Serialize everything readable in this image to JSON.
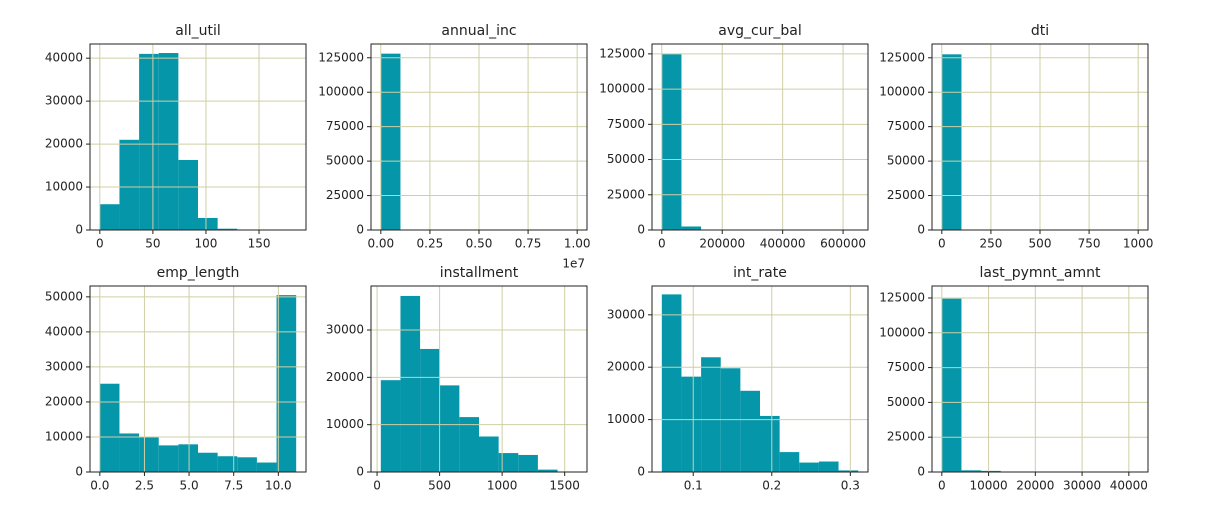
{
  "chart_data": [
    {
      "type": "histogram",
      "title": "all_util",
      "color": "#0596aa",
      "grid": true,
      "bins": [
        0,
        18.5,
        37,
        55.5,
        74,
        92.5,
        111,
        129.5,
        148,
        166.5,
        185
      ],
      "values": [
        6000,
        21000,
        41000,
        41200,
        16300,
        2800,
        300,
        50,
        10,
        5
      ],
      "xlim": [
        -9.25,
        194.25
      ],
      "xticks": [
        0,
        50,
        100,
        150
      ],
      "ylim": [
        0,
        43300
      ],
      "yticks": [
        0,
        10000,
        20000,
        30000,
        40000
      ]
    },
    {
      "type": "histogram",
      "title": "annual_inc",
      "color": "#0596aa",
      "grid": true,
      "offset_text": "1e7",
      "bins": [
        0,
        1000000,
        2000000,
        3000000,
        4000000,
        5000000,
        6000000,
        7000000,
        8000000,
        9000000,
        10000000
      ],
      "values": [
        128000,
        60,
        10,
        5,
        2,
        1,
        1,
        0,
        0,
        1
      ],
      "xlim": [
        -500000,
        10500000
      ],
      "xticks": [
        {
          "value": 0,
          "label": "0.00"
        },
        {
          "value": 2500000,
          "label": "0.25"
        },
        {
          "value": 5000000,
          "label": "0.50"
        },
        {
          "value": 7500000,
          "label": "0.75"
        },
        {
          "value": 10000000,
          "label": "1.00"
        }
      ],
      "ylim": [
        0,
        135000
      ],
      "yticks": [
        0,
        25000,
        50000,
        75000,
        100000,
        125000
      ]
    },
    {
      "type": "histogram",
      "title": "avg_cur_bal",
      "color": "#0596aa",
      "grid": true,
      "bins": [
        0,
        65000,
        130000,
        195000,
        260000,
        325000,
        390000,
        455000,
        520000,
        585000,
        650000
      ],
      "values": [
        125000,
        2500,
        200,
        40,
        10,
        5,
        2,
        1,
        0,
        1
      ],
      "xlim": [
        -32500,
        682500
      ],
      "xticks": [
        0,
        200000,
        400000,
        600000
      ],
      "ylim": [
        0,
        132000
      ],
      "yticks": [
        0,
        25000,
        50000,
        75000,
        100000,
        125000
      ]
    },
    {
      "type": "histogram",
      "title": "dti",
      "color": "#0596aa",
      "grid": true,
      "bins": [
        0,
        100,
        200,
        300,
        400,
        500,
        600,
        700,
        800,
        900,
        1000
      ],
      "values": [
        127500,
        20,
        5,
        2,
        1,
        1,
        0,
        0,
        0,
        1
      ],
      "xlim": [
        -50,
        1050
      ],
      "xticks": [
        0,
        250,
        500,
        750,
        1000
      ],
      "ylim": [
        0,
        135000
      ],
      "yticks": [
        0,
        25000,
        50000,
        75000,
        100000,
        125000
      ]
    },
    {
      "type": "histogram",
      "title": "emp_length",
      "color": "#0596aa",
      "grid": true,
      "bins": [
        0,
        1.1,
        2.2,
        3.3,
        4.4,
        5.5,
        6.6,
        7.7,
        8.8,
        9.9,
        11
      ],
      "values": [
        25200,
        11000,
        10000,
        7600,
        7900,
        5500,
        4500,
        4200,
        2700,
        50500
      ],
      "xlim": [
        -0.55,
        11.55
      ],
      "xticks": [
        {
          "value": 0,
          "label": "0.0"
        },
        2.5,
        {
          "value": 5,
          "label": "5.0"
        },
        7.5,
        {
          "value": 10,
          "label": "10.0"
        }
      ],
      "ylim": [
        0,
        53100
      ],
      "yticks": [
        0,
        10000,
        20000,
        30000,
        40000,
        50000
      ]
    },
    {
      "type": "histogram",
      "title": "installment",
      "color": "#0596aa",
      "grid": true,
      "bins": [
        30,
        187,
        344,
        501,
        658,
        815,
        972,
        1129,
        1286,
        1443,
        1600
      ],
      "values": [
        19400,
        37200,
        26000,
        18300,
        11600,
        7500,
        4000,
        3600,
        500,
        50
      ],
      "xlim": [
        -48.5,
        1678.5
      ],
      "xticks": [
        0,
        500,
        1000,
        1500
      ],
      "ylim": [
        0,
        39300
      ],
      "yticks": [
        0,
        10000,
        20000,
        30000
      ]
    },
    {
      "type": "histogram",
      "title": "int_rate",
      "color": "#0596aa",
      "grid": true,
      "bins": [
        0.06,
        0.085,
        0.11,
        0.135,
        0.16,
        0.185,
        0.21,
        0.235,
        0.26,
        0.285,
        0.31
      ],
      "values": [
        33900,
        18200,
        21900,
        19800,
        15500,
        10700,
        3800,
        1800,
        2000,
        300
      ],
      "xlim": [
        0.0475,
        0.3225
      ],
      "xticks": [
        0.1,
        0.2,
        0.3
      ],
      "ylim": [
        0,
        35500
      ],
      "yticks": [
        0,
        10000,
        20000,
        30000
      ]
    },
    {
      "type": "histogram",
      "title": "last_pymnt_amnt",
      "color": "#0596aa",
      "grid": true,
      "bins": [
        0,
        4200,
        8400,
        12600,
        16800,
        21000,
        25200,
        29400,
        33600,
        37800,
        42000
      ],
      "values": [
        124500,
        1200,
        800,
        300,
        100,
        50,
        30,
        10,
        5,
        5
      ],
      "xlim": [
        -2100,
        44100
      ],
      "xticks": [
        0,
        10000,
        20000,
        30000,
        40000
      ],
      "ylim": [
        0,
        133600
      ],
      "yticks": [
        0,
        25000,
        50000,
        75000,
        100000,
        125000
      ]
    }
  ]
}
